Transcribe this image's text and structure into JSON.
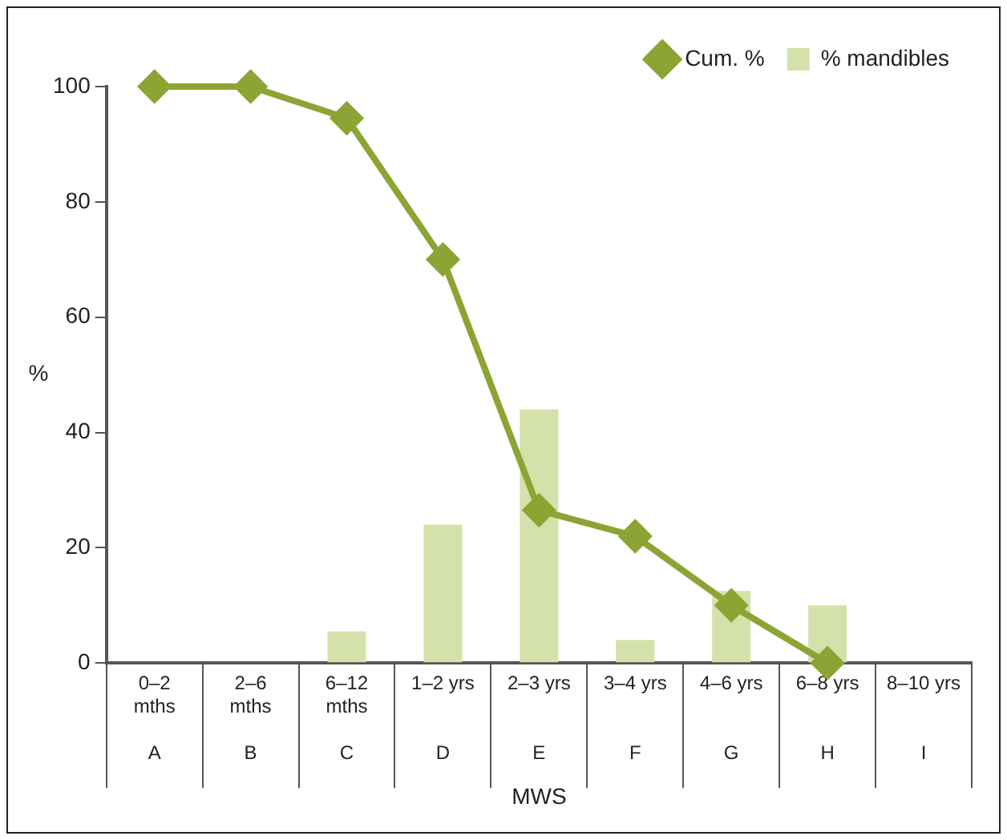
{
  "chart_data": {
    "type": "bar",
    "xlabel": "MWS",
    "ylabel": "%",
    "categories": [
      "0–2\nmths\nA",
      "2–6\nmths\nB",
      "6–12\nmths\nC",
      "1–2 yrs\nD",
      "2–3 yrs\nE",
      "3–4 yrs\nF",
      "4–6 yrs\nG",
      "6–8 yrs\nH",
      "8–10 yrs\nI"
    ],
    "series": [
      {
        "name": "% mandibles",
        "type": "bar",
        "color": "#d5e1aa",
        "values": [
          0,
          0,
          5.5,
          24,
          44,
          4,
          12.5,
          10,
          0
        ]
      },
      {
        "name": "Cum. %",
        "type": "line",
        "color": "#8ca434",
        "marker": "diamond",
        "values": [
          100,
          100,
          94.5,
          70,
          26.5,
          22,
          10,
          0,
          null
        ]
      }
    ],
    "ylim": [
      0,
      100
    ],
    "yticks": [
      0,
      20,
      40,
      60,
      80,
      100
    ],
    "grid": false,
    "legend": "top right"
  }
}
